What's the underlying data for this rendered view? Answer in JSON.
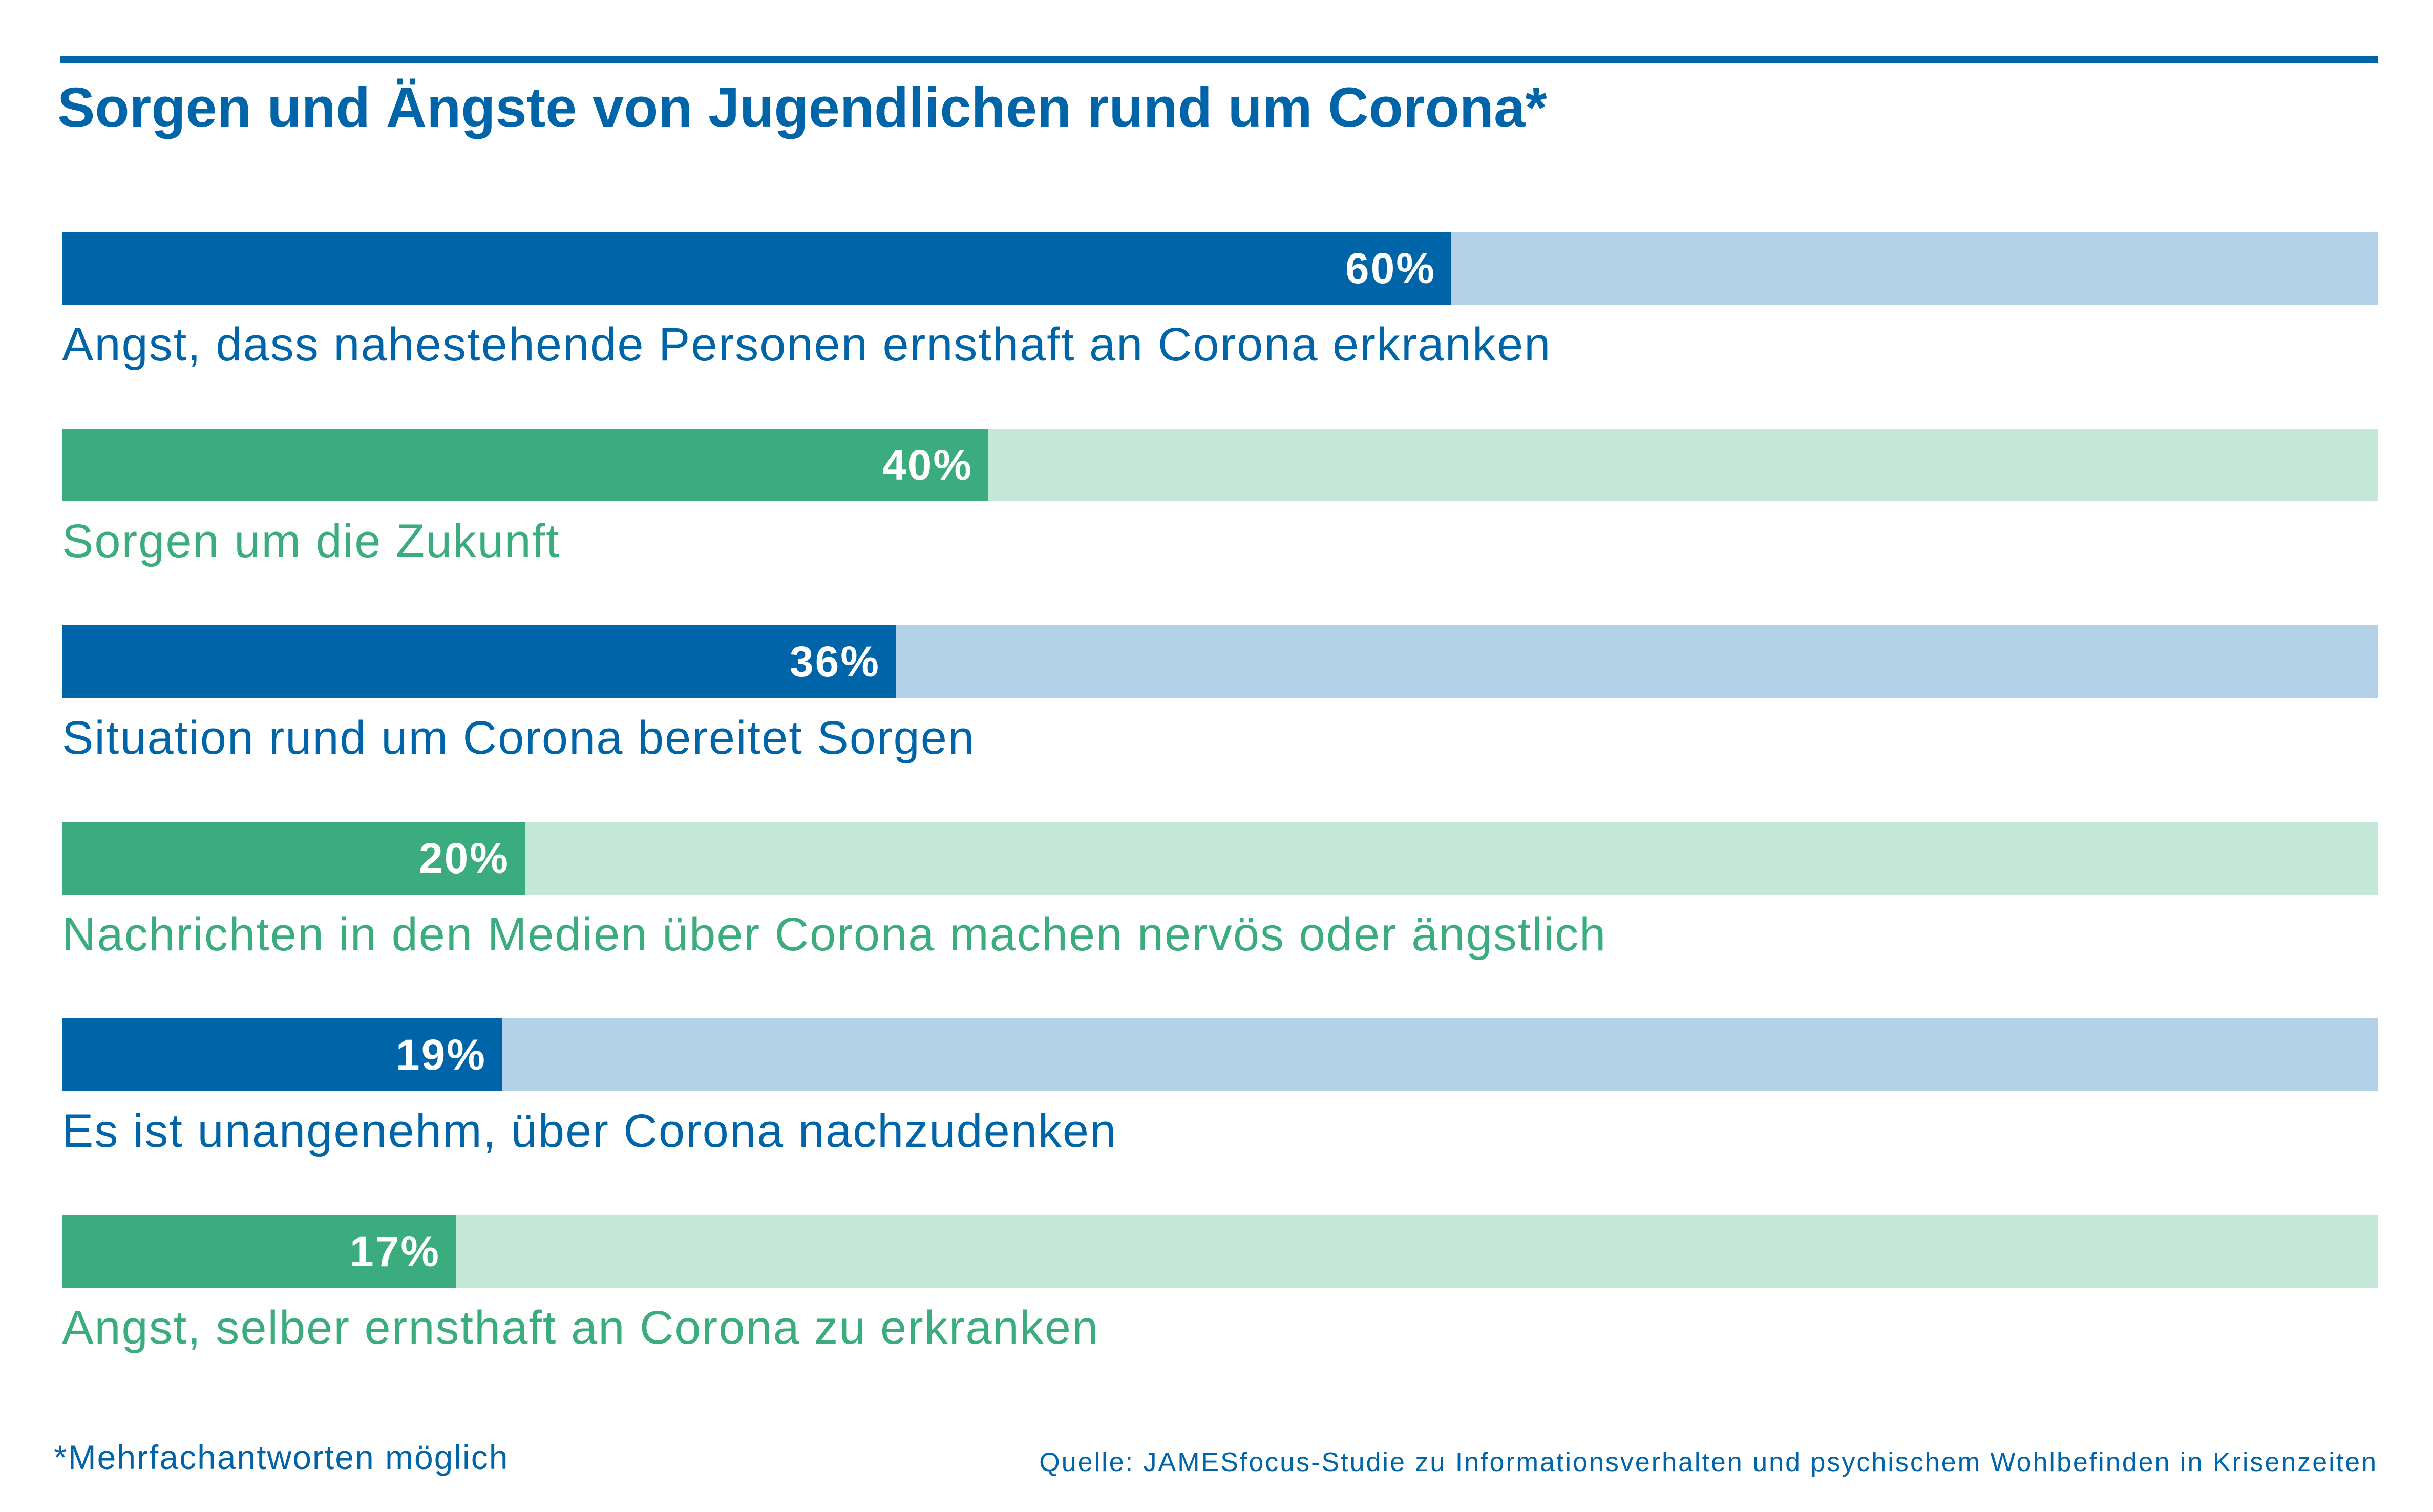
{
  "chart_data": {
    "type": "bar",
    "orientation": "horizontal",
    "title": "Sorgen und Ängste von Jugendlichen rund um Corona*",
    "xlim": [
      0,
      100
    ],
    "unit": "%",
    "grid": false,
    "categories": [
      "Angst, dass nahestehende Personen ernsthaft an Corona erkranken",
      "Sorgen um die Zukunft",
      "Situation rund um Corona bereitet Sorgen",
      "Nachrichten in den Medien über Corona machen nervös oder ängstlich",
      "Es ist unangenehm, über Corona nachzudenken",
      "Angst, selber ernsthaft an Corona zu erkranken"
    ],
    "values": [
      60,
      40,
      36,
      20,
      19,
      17
    ],
    "value_labels": [
      "60%",
      "40%",
      "36%",
      "20%",
      "19%",
      "17%"
    ],
    "bar_colors": [
      "#0064a8",
      "#3aac7d",
      "#0064a8",
      "#3aac7d",
      "#0064a8",
      "#3aac7d"
    ],
    "track_colors": [
      "#b3d1e7",
      "#c4e7d8",
      "#b3d1e7",
      "#c4e7d8",
      "#b3d1e7",
      "#c4e7d8"
    ]
  },
  "footnote": "*Mehrfachantworten möglich",
  "source": "Quelle: JAMESfocus-Studie zu Informationsverhalten und psychischem Wohlbefinden in Krisenzeiten",
  "colors": {
    "accent_blue": "#0064a8",
    "accent_green": "#3aac7d"
  }
}
